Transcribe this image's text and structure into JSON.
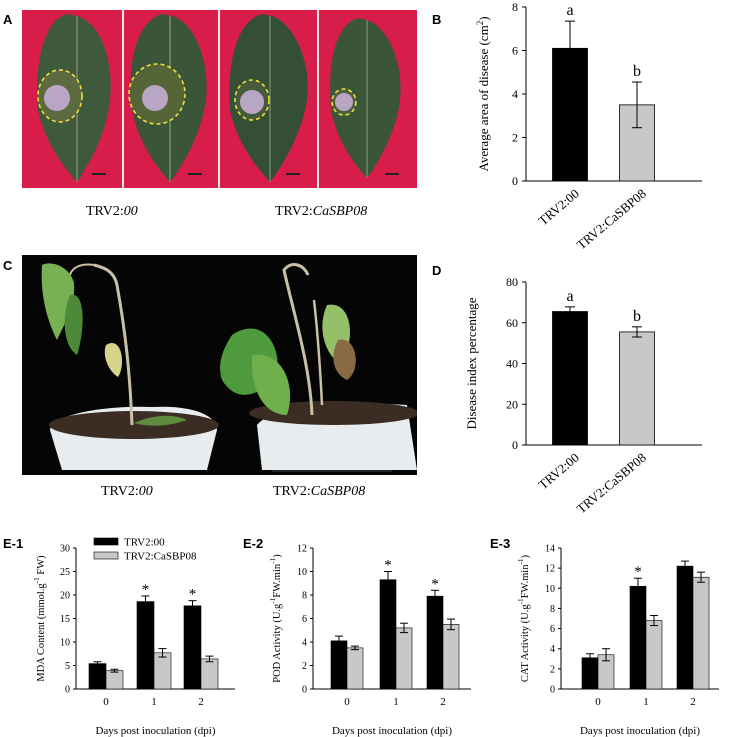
{
  "panels": {
    "a": {
      "letter": "A",
      "labels": [
        "TRV2:",
        "00",
        "TRV2:",
        "CaSBP08"
      ]
    },
    "c": {
      "letter": "C",
      "labels": [
        "TRV2:",
        "00",
        "TRV2:",
        "CaSBP08"
      ]
    }
  },
  "colors": {
    "trv2_00": "#000000",
    "trv2_casbp08": "#c8c8c8",
    "leaf_bg": "#d81d4a",
    "plant_bg": "#050505"
  },
  "chart_data": [
    {
      "id": "B",
      "letter": "B",
      "type": "bar",
      "categories": [
        "TRV2:00",
        "TRV2:CaSBP08"
      ],
      "values": [
        6.1,
        3.5
      ],
      "errors": [
        1.25,
        1.05
      ],
      "letters": [
        "a",
        "b"
      ],
      "ylabel": "Average area of disease (cm",
      "ylabel_sup": "2",
      "ylabel_end": ")",
      "ylim": [
        0,
        8
      ],
      "yticks": [
        "0",
        "2",
        "4",
        "6",
        "8"
      ]
    },
    {
      "id": "D",
      "letter": "D",
      "type": "bar",
      "categories": [
        "TRV2:00",
        "TRV2:CaSBP08"
      ],
      "values": [
        65.5,
        55.5
      ],
      "errors": [
        2.3,
        2.5
      ],
      "letters": [
        "a",
        "b"
      ],
      "ylabel": "Disease index percentage",
      "ylim": [
        0,
        80
      ],
      "yticks": [
        "0",
        "20",
        "40",
        "60",
        "80"
      ]
    },
    {
      "id": "E1",
      "letter": "E-1",
      "type": "bar",
      "categories": [
        "0",
        "1",
        "2"
      ],
      "series": [
        {
          "name": "TRV2:00",
          "values": [
            5.4,
            18.6,
            17.7
          ],
          "errors": [
            0.4,
            1.2,
            1.1
          ]
        },
        {
          "name": "TRV2:CaSBP08",
          "values": [
            3.9,
            7.7,
            6.4
          ],
          "errors": [
            0.3,
            0.9,
            0.6
          ]
        }
      ],
      "stars": [
        "",
        "*",
        "*"
      ],
      "xlabel": "Days post inoculation (dpi)",
      "ylabel": "MDA Content (mmol.g",
      "ylabel_sup": "-1",
      "ylabel_end": " FW)",
      "ylim": [
        0,
        30
      ],
      "yticks": [
        "0",
        "5",
        "10",
        "15",
        "20",
        "25",
        "30"
      ]
    },
    {
      "id": "E2",
      "letter": "E-2",
      "type": "bar",
      "categories": [
        "0",
        "1",
        "2"
      ],
      "series": [
        {
          "name": "TRV2:00",
          "values": [
            4.1,
            9.3,
            7.9
          ],
          "errors": [
            0.4,
            0.7,
            0.5
          ]
        },
        {
          "name": "TRV2:CaSBP08",
          "values": [
            3.5,
            5.2,
            5.5
          ],
          "errors": [
            0.15,
            0.4,
            0.45
          ]
        }
      ],
      "stars": [
        "",
        "*",
        "*"
      ],
      "xlabel": "Days post inoculation (dpi)",
      "ylabel": "POD Activity (U.g",
      "ylabel_sup": "-1",
      "ylabel_end": "FW.min",
      "ylabel_sup2": "-1",
      "ylabel_end2": ")",
      "ylim": [
        0,
        12
      ],
      "yticks": [
        "0",
        "2",
        "4",
        "6",
        "8",
        "10",
        "12"
      ]
    },
    {
      "id": "E3",
      "letter": "E-3",
      "type": "bar",
      "categories": [
        "0",
        "1",
        "2"
      ],
      "series": [
        {
          "name": "TRV2:00",
          "values": [
            3.1,
            10.2,
            12.2
          ],
          "errors": [
            0.4,
            0.8,
            0.5
          ]
        },
        {
          "name": "TRV2:CaSBP08",
          "values": [
            3.4,
            6.8,
            11.1
          ],
          "errors": [
            0.6,
            0.5,
            0.5
          ]
        }
      ],
      "stars": [
        "",
        "*",
        ""
      ],
      "xlabel": "Days post inoculation (dpi)",
      "ylabel": "CAT Activity (U.g",
      "ylabel_sup": "-1",
      "ylabel_end": "FW.min",
      "ylabel_sup2": "-1",
      "ylabel_end2": ")",
      "ylim": [
        0,
        14
      ],
      "yticks": [
        "0",
        "2",
        "4",
        "6",
        "8",
        "10",
        "12",
        "14"
      ]
    }
  ]
}
